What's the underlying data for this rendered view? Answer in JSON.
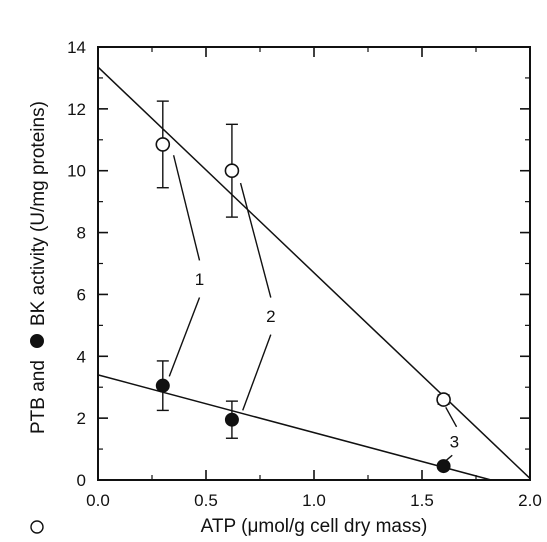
{
  "chart_data": {
    "type": "scatter",
    "title": "",
    "xlabel": "ATP (μmol/g cell dry mass)",
    "ylabel": "PTB and BK activity (U/mg proteins)",
    "ylabel_parts": {
      "open_marker_text": "PTB and",
      "filled_marker_text": "BK activity (U/mg proteins)"
    },
    "xlim": [
      0.0,
      2.0
    ],
    "ylim": [
      0,
      14
    ],
    "x_ticks": [
      0.0,
      0.5,
      1.0,
      1.5,
      2.0
    ],
    "x_tick_labels": [
      "0.0",
      "0.5",
      "1.0",
      "1.5",
      "2.0"
    ],
    "y_ticks": [
      0,
      2,
      4,
      6,
      8,
      10,
      12,
      14
    ],
    "y_tick_labels": [
      "0",
      "2",
      "4",
      "6",
      "8",
      "10",
      "12",
      "14"
    ],
    "grid": false,
    "series": [
      {
        "marker": "open-circle",
        "points": [
          {
            "x": 0.3,
            "y": 10.85,
            "err": 1.4
          },
          {
            "x": 0.62,
            "y": 10.0,
            "err": 1.5
          },
          {
            "x": 1.6,
            "y": 2.6,
            "err": 0.15
          }
        ],
        "fit_line": {
          "x": [
            0.0,
            2.0
          ],
          "y": [
            13.35,
            0.05
          ]
        }
      },
      {
        "marker": "filled-circle",
        "points": [
          {
            "x": 0.3,
            "y": 3.05,
            "err": 0.8
          },
          {
            "x": 0.62,
            "y": 1.95,
            "err": 0.6
          },
          {
            "x": 1.6,
            "y": 0.45,
            "err": 0
          }
        ],
        "fit_line": {
          "x": [
            0.0,
            1.82
          ],
          "y": [
            3.4,
            0.0
          ]
        }
      }
    ],
    "annotations": [
      {
        "text": "1",
        "x": 0.47,
        "y": 6.5
      },
      {
        "text": "2",
        "x": 0.8,
        "y": 5.3
      },
      {
        "text": "3",
        "x": 1.65,
        "y": 1.25
      }
    ],
    "annotation_leaders": [
      {
        "label": "1",
        "from": [
          0.35,
          10.5
        ],
        "to": [
          0.47,
          7.1
        ]
      },
      {
        "label": "1",
        "from": [
          0.47,
          5.9
        ],
        "to": [
          0.33,
          3.35
        ]
      },
      {
        "label": "2",
        "from": [
          0.66,
          9.6
        ],
        "to": [
          0.8,
          5.9
        ]
      },
      {
        "label": "2",
        "from": [
          0.8,
          4.7
        ],
        "to": [
          0.67,
          2.25
        ]
      },
      {
        "label": "3",
        "from": [
          1.61,
          2.35
        ],
        "to": [
          1.66,
          1.72
        ]
      },
      {
        "label": "3",
        "from": [
          1.64,
          0.8
        ],
        "to": [
          1.61,
          0.62
        ]
      }
    ]
  }
}
